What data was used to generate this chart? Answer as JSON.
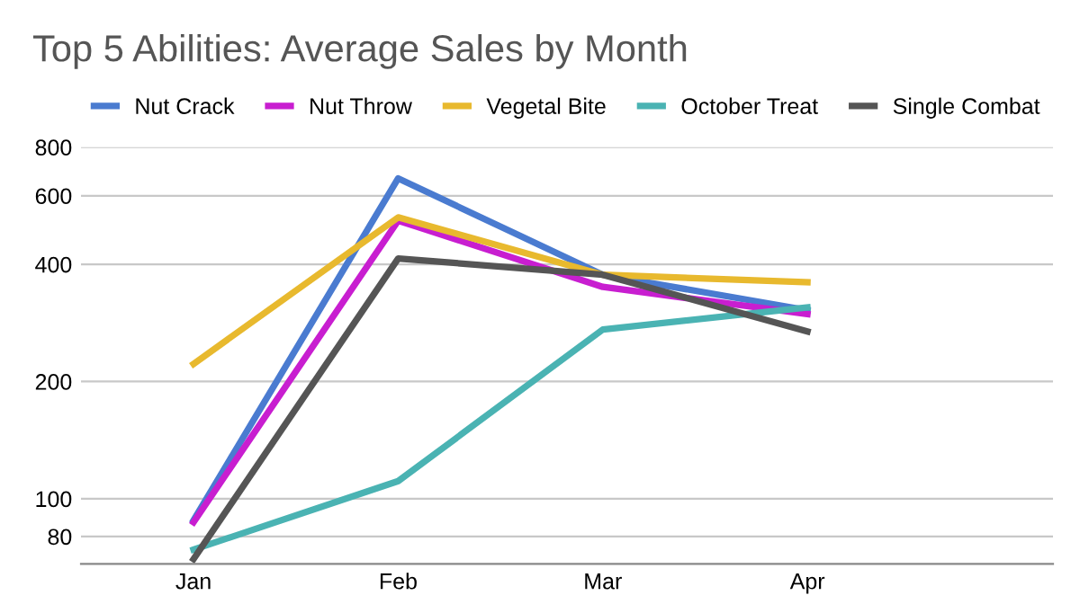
{
  "chart_data": {
    "type": "line",
    "title": "Top 5 Abilities: Average Sales by Month",
    "categories": [
      "Jan",
      "Feb",
      "Mar",
      "Apr"
    ],
    "series": [
      {
        "name": "Nut Crack",
        "color": "#4a7bd0",
        "values": [
          88,
          665,
          376,
          305
        ]
      },
      {
        "name": "Nut Throw",
        "color": "#c81ed0",
        "values": [
          87,
          518,
          350,
          298
        ]
      },
      {
        "name": "Vegetal Bite",
        "color": "#e8b92e",
        "values": [
          222,
          528,
          376,
          360
        ]
      },
      {
        "name": "October Treat",
        "color": "#4ab3b3",
        "values": [
          74,
          111,
          272,
          310
        ]
      },
      {
        "name": "Single Combat",
        "color": "#555555",
        "values": [
          70,
          414,
          376,
          269
        ]
      }
    ],
    "log": true,
    "ylim": [
      68,
      800
    ],
    "yticks": [
      80,
      100,
      200,
      400,
      600,
      800
    ],
    "grid": "y",
    "legend": "top",
    "marker": "none",
    "line_style": "solid"
  }
}
